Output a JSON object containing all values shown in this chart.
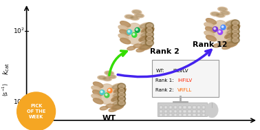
{
  "background_color": "#ffffff",
  "pick_text": "PICK\nOF THE\nWEEK",
  "pick_color": "#F5A623",
  "pick_text_color": "#ffffff",
  "arrow_rank2_color": "#33dd00",
  "arrow_rank12_color": "#4422ee",
  "rank2_label": "Rank 2",
  "rank12_label": "Rank 12",
  "wt_label": "WT",
  "box_wt_seq": "IRLVLV",
  "box_rank1_seq": "IHFILV",
  "box_rank2_seq": "VRFLL",
  "seq_color_wt": "#000000",
  "seq_color_rank1": "#ff2200",
  "seq_color_rank2": "#ff6600",
  "protein_tan": "#D4B896",
  "protein_dark": "#7a5c2a",
  "protein_mid": "#b89060",
  "protein_shadow": "#8B7040",
  "wt_cyan": "#44CCCC",
  "wt_green": "#44CC44",
  "wt_orange": "#FF8833",
  "rank2_green1": "#33DD33",
  "rank2_green2": "#00AA44",
  "rank2_cyan": "#44CCCC",
  "rank12_purple1": "#7733DD",
  "rank12_purple2": "#9944FF",
  "rank12_blue": "#4488FF"
}
